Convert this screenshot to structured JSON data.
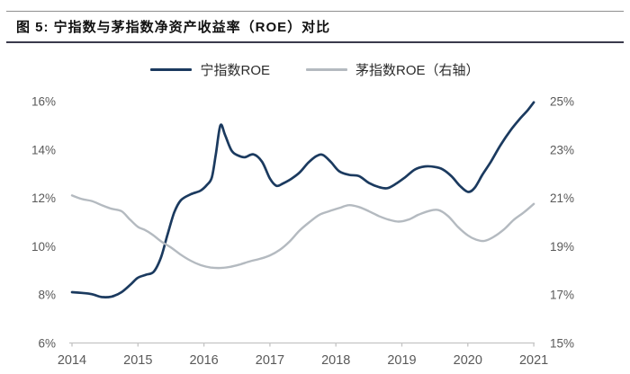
{
  "figure": {
    "title": "图 5: 宁指数与茅指数净资产收益率（ROE）对比"
  },
  "legend": {
    "items": [
      {
        "label": "宁指数ROE",
        "color": "#1b3a5f"
      },
      {
        "label": "茅指数ROE（右轴）",
        "color": "#b4bac0"
      }
    ]
  },
  "chart_data": {
    "type": "line",
    "title": "宁指数与茅指数净资产收益率（ROE）对比",
    "x_axis": {
      "tick_labels": [
        "2014",
        "2015",
        "2016",
        "2017",
        "2018",
        "2019",
        "2020",
        "2021"
      ],
      "tick_values": [
        2014,
        2015,
        2016,
        2017,
        2018,
        2019,
        2020,
        2021
      ],
      "range": [
        2014,
        2021
      ]
    },
    "left_axis": {
      "tick_labels": [
        "16%",
        "14%",
        "12%",
        "10%",
        "8%",
        "6%"
      ],
      "tick_values": [
        16,
        14,
        12,
        10,
        8,
        6
      ],
      "range": [
        6,
        16
      ]
    },
    "right_axis": {
      "tick_labels": [
        "25%",
        "23%",
        "21%",
        "19%",
        "17%",
        "15%"
      ],
      "tick_values": [
        25,
        23,
        21,
        19,
        17,
        15
      ],
      "range": [
        15,
        25
      ]
    },
    "grid": false,
    "legend_position": "top",
    "series": [
      {
        "name": "宁指数ROE",
        "axis": "left",
        "color": "#1b3a5f",
        "unit": "%",
        "points": [
          [
            2014.0,
            8.1
          ],
          [
            2014.15,
            8.07
          ],
          [
            2014.3,
            8.02
          ],
          [
            2014.45,
            7.9
          ],
          [
            2014.6,
            7.92
          ],
          [
            2014.75,
            8.1
          ],
          [
            2014.9,
            8.45
          ],
          [
            2015.0,
            8.7
          ],
          [
            2015.12,
            8.82
          ],
          [
            2015.24,
            8.95
          ],
          [
            2015.35,
            9.55
          ],
          [
            2015.45,
            10.5
          ],
          [
            2015.55,
            11.4
          ],
          [
            2015.65,
            11.9
          ],
          [
            2015.8,
            12.15
          ],
          [
            2015.95,
            12.3
          ],
          [
            2016.05,
            12.55
          ],
          [
            2016.12,
            12.85
          ],
          [
            2016.18,
            13.8
          ],
          [
            2016.25,
            15.0
          ],
          [
            2016.32,
            14.6
          ],
          [
            2016.42,
            13.95
          ],
          [
            2016.52,
            13.75
          ],
          [
            2016.62,
            13.68
          ],
          [
            2016.75,
            13.8
          ],
          [
            2016.88,
            13.5
          ],
          [
            2017.0,
            12.8
          ],
          [
            2017.1,
            12.5
          ],
          [
            2017.2,
            12.6
          ],
          [
            2017.32,
            12.78
          ],
          [
            2017.45,
            13.05
          ],
          [
            2017.58,
            13.45
          ],
          [
            2017.7,
            13.72
          ],
          [
            2017.8,
            13.78
          ],
          [
            2017.92,
            13.5
          ],
          [
            2018.05,
            13.1
          ],
          [
            2018.2,
            12.95
          ],
          [
            2018.35,
            12.9
          ],
          [
            2018.5,
            12.62
          ],
          [
            2018.65,
            12.45
          ],
          [
            2018.78,
            12.4
          ],
          [
            2018.92,
            12.6
          ],
          [
            2019.05,
            12.85
          ],
          [
            2019.2,
            13.18
          ],
          [
            2019.35,
            13.3
          ],
          [
            2019.5,
            13.28
          ],
          [
            2019.62,
            13.18
          ],
          [
            2019.75,
            12.9
          ],
          [
            2019.88,
            12.5
          ],
          [
            2020.0,
            12.25
          ],
          [
            2020.1,
            12.4
          ],
          [
            2020.22,
            12.95
          ],
          [
            2020.35,
            13.5
          ],
          [
            2020.5,
            14.2
          ],
          [
            2020.65,
            14.8
          ],
          [
            2020.8,
            15.3
          ],
          [
            2020.9,
            15.6
          ],
          [
            2021.0,
            15.95
          ]
        ]
      },
      {
        "name": "茅指数ROE（右轴）",
        "axis": "right",
        "color": "#b4bac0",
        "unit": "%",
        "points": [
          [
            2014.0,
            21.1
          ],
          [
            2014.15,
            20.95
          ],
          [
            2014.3,
            20.87
          ],
          [
            2014.45,
            20.7
          ],
          [
            2014.6,
            20.55
          ],
          [
            2014.75,
            20.45
          ],
          [
            2014.88,
            20.1
          ],
          [
            2015.0,
            19.8
          ],
          [
            2015.1,
            19.68
          ],
          [
            2015.22,
            19.48
          ],
          [
            2015.35,
            19.2
          ],
          [
            2015.5,
            18.95
          ],
          [
            2015.65,
            18.65
          ],
          [
            2015.8,
            18.4
          ],
          [
            2015.95,
            18.22
          ],
          [
            2016.1,
            18.12
          ],
          [
            2016.25,
            18.1
          ],
          [
            2016.4,
            18.15
          ],
          [
            2016.55,
            18.25
          ],
          [
            2016.7,
            18.38
          ],
          [
            2016.85,
            18.48
          ],
          [
            2017.0,
            18.62
          ],
          [
            2017.15,
            18.85
          ],
          [
            2017.3,
            19.2
          ],
          [
            2017.45,
            19.65
          ],
          [
            2017.6,
            20.0
          ],
          [
            2017.75,
            20.3
          ],
          [
            2017.9,
            20.45
          ],
          [
            2018.05,
            20.58
          ],
          [
            2018.2,
            20.7
          ],
          [
            2018.35,
            20.62
          ],
          [
            2018.5,
            20.45
          ],
          [
            2018.65,
            20.25
          ],
          [
            2018.8,
            20.1
          ],
          [
            2018.95,
            20.02
          ],
          [
            2019.1,
            20.1
          ],
          [
            2019.25,
            20.3
          ],
          [
            2019.4,
            20.45
          ],
          [
            2019.55,
            20.5
          ],
          [
            2019.7,
            20.25
          ],
          [
            2019.85,
            19.8
          ],
          [
            2020.0,
            19.45
          ],
          [
            2020.12,
            19.28
          ],
          [
            2020.25,
            19.22
          ],
          [
            2020.4,
            19.4
          ],
          [
            2020.55,
            19.7
          ],
          [
            2020.7,
            20.1
          ],
          [
            2020.85,
            20.4
          ],
          [
            2021.0,
            20.75
          ]
        ]
      }
    ]
  }
}
